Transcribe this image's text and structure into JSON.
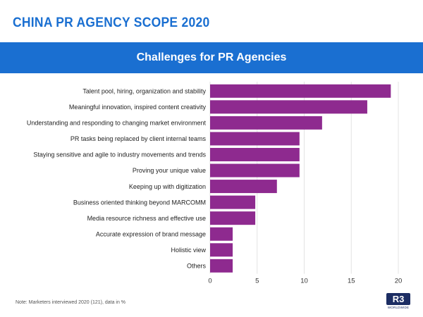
{
  "header": {
    "title": "CHINA PR AGENCY SCOPE 2020"
  },
  "colors": {
    "brand_blue": "#1a6fd1",
    "bar_purple": "#8e2a8f",
    "logo_navy": "#1c2d63"
  },
  "chart_data": {
    "type": "bar",
    "orientation": "horizontal",
    "title": "Challenges for PR Agencies",
    "categories": [
      "Talent pool, hiring, organization and stability",
      "Meaningful innovation, inspired content creativity",
      "Understanding and responding to changing market environment",
      "PR tasks being replaced by client internal teams",
      "Staying sensitive and agile to industry movements and trends",
      "Proving your unique value",
      "Keeping up with digitization",
      "Business oriented thinking beyond MARCOMM",
      "Media resource richness and effective use",
      "Accurate expression of brand message",
      "Holistic view",
      "Others"
    ],
    "values": [
      19.2,
      16.7,
      11.9,
      9.5,
      9.5,
      9.5,
      7.1,
      4.8,
      4.8,
      2.4,
      2.4,
      2.4
    ],
    "xlim": [
      0,
      20
    ],
    "xticks": [
      0,
      5,
      10,
      15,
      20
    ],
    "grid": "vertical",
    "legend": "none",
    "bar_color": "#8e2a8f"
  },
  "footer": {
    "note": "Note: Marketers interviewed 2020 (121), data in %",
    "logo_text": "R3",
    "logo_subtext": "WORLDWIDE"
  }
}
